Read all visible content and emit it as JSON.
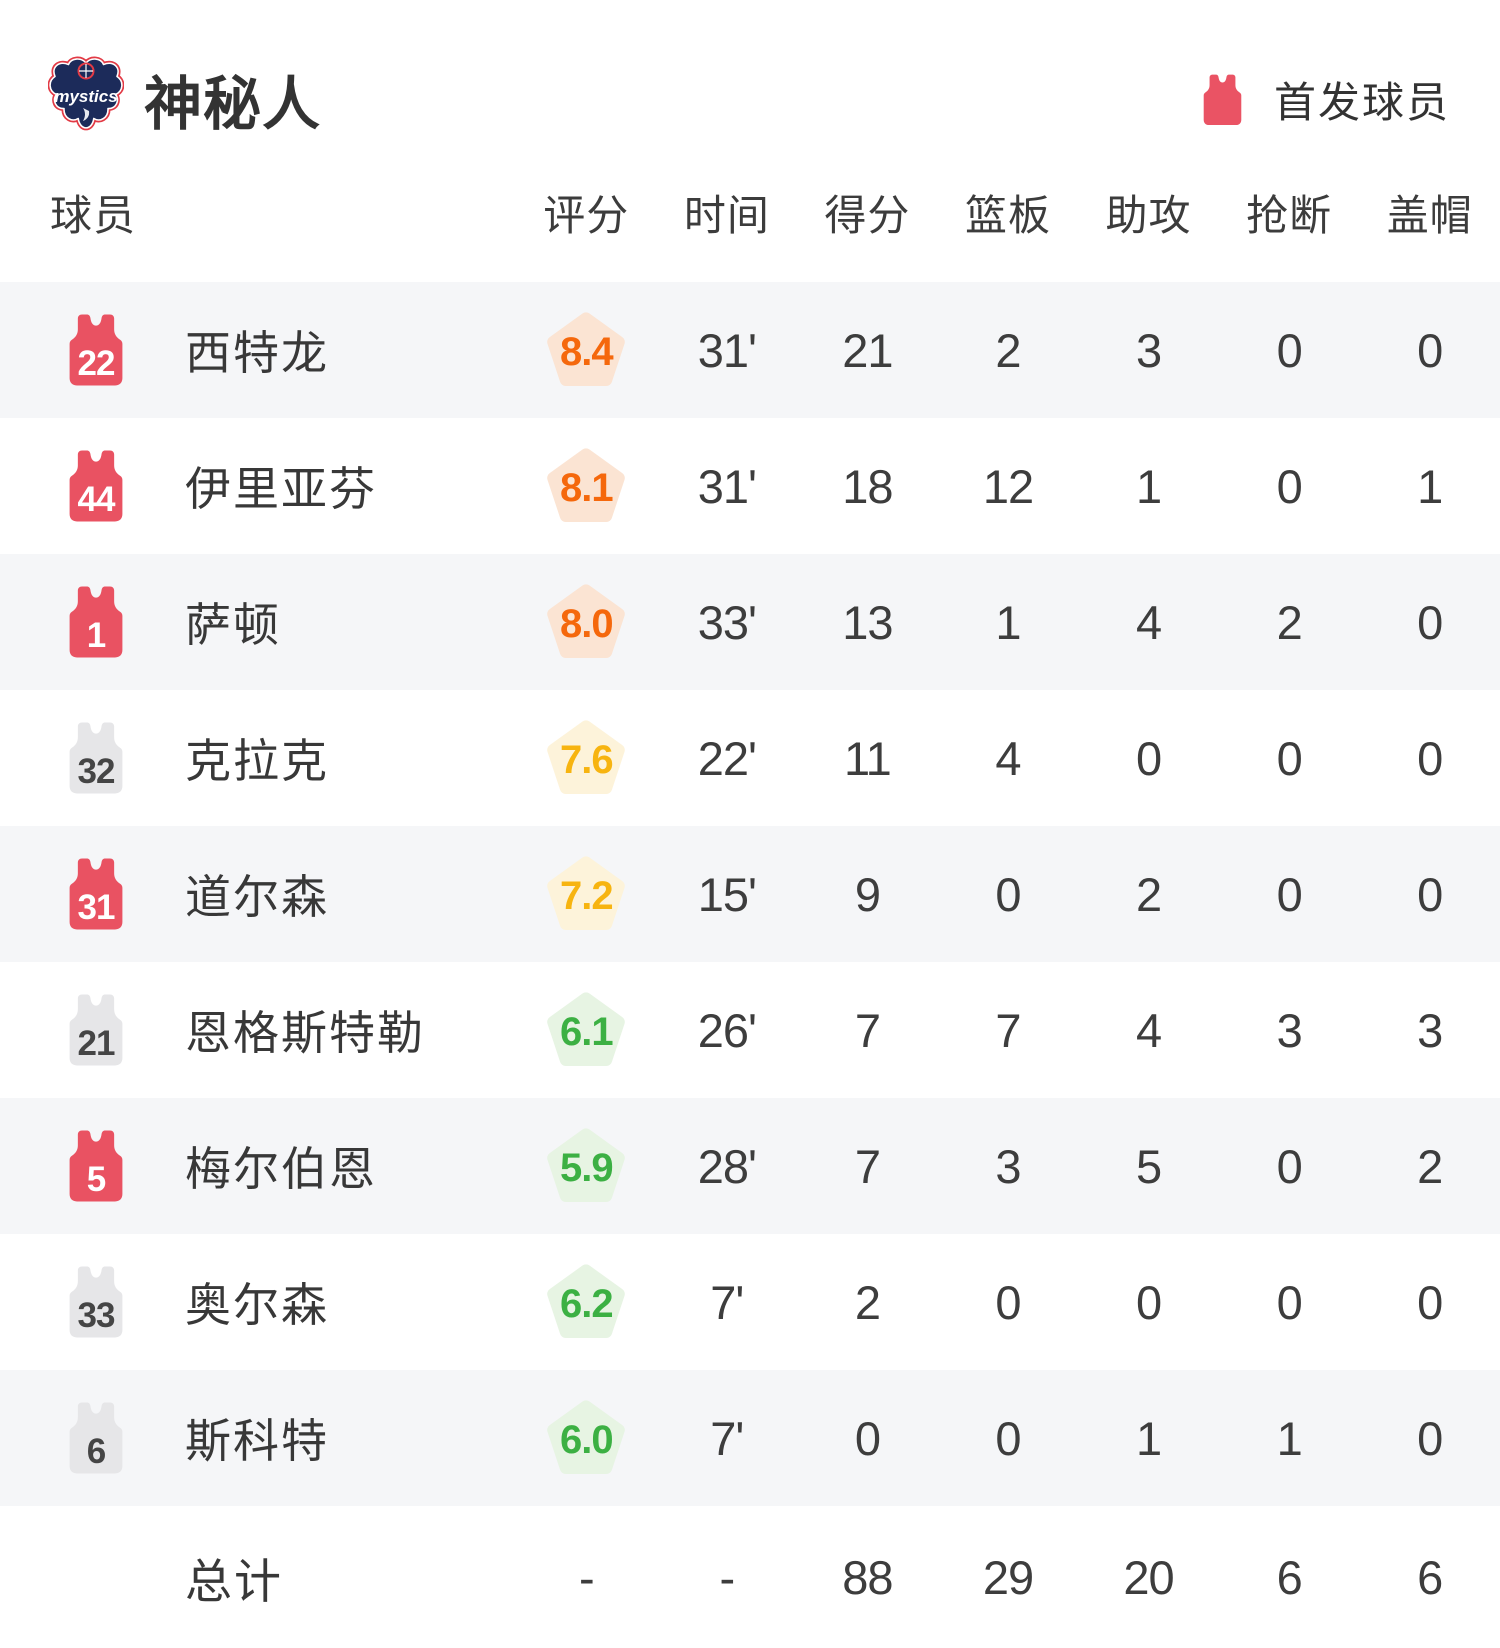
{
  "header": {
    "team_name": "神秘人",
    "logo_text": "mystics",
    "legend_label": "首发球员"
  },
  "table": {
    "columns": {
      "player": "球员",
      "rating": "评分",
      "time": "时间",
      "points": "得分",
      "rebounds": "篮板",
      "assists": "助攻",
      "steals": "抢断",
      "blocks": "盖帽"
    },
    "players": [
      {
        "number": "22",
        "starter": true,
        "name": "西特龙",
        "rating": "8.4",
        "tier": "orange",
        "time": "31'",
        "points": "21",
        "rebounds": "2",
        "assists": "3",
        "steals": "0",
        "blocks": "0"
      },
      {
        "number": "44",
        "starter": true,
        "name": "伊里亚芬",
        "rating": "8.1",
        "tier": "orange",
        "time": "31'",
        "points": "18",
        "rebounds": "12",
        "assists": "1",
        "steals": "0",
        "blocks": "1"
      },
      {
        "number": "1",
        "starter": true,
        "name": "萨顿",
        "rating": "8.0",
        "tier": "orange",
        "time": "33'",
        "points": "13",
        "rebounds": "1",
        "assists": "4",
        "steals": "2",
        "blocks": "0"
      },
      {
        "number": "32",
        "starter": false,
        "name": "克拉克",
        "rating": "7.6",
        "tier": "amber",
        "time": "22'",
        "points": "11",
        "rebounds": "4",
        "assists": "0",
        "steals": "0",
        "blocks": "0"
      },
      {
        "number": "31",
        "starter": true,
        "name": "道尔森",
        "rating": "7.2",
        "tier": "amber",
        "time": "15'",
        "points": "9",
        "rebounds": "0",
        "assists": "2",
        "steals": "0",
        "blocks": "0"
      },
      {
        "number": "21",
        "starter": false,
        "name": "恩格斯特勒",
        "rating": "6.1",
        "tier": "green",
        "time": "26'",
        "points": "7",
        "rebounds": "7",
        "assists": "4",
        "steals": "3",
        "blocks": "3"
      },
      {
        "number": "5",
        "starter": true,
        "name": "梅尔伯恩",
        "rating": "5.9",
        "tier": "green",
        "time": "28'",
        "points": "7",
        "rebounds": "3",
        "assists": "5",
        "steals": "0",
        "blocks": "2"
      },
      {
        "number": "33",
        "starter": false,
        "name": "奥尔森",
        "rating": "6.2",
        "tier": "green",
        "time": "7'",
        "points": "2",
        "rebounds": "0",
        "assists": "0",
        "steals": "0",
        "blocks": "0"
      },
      {
        "number": "6",
        "starter": false,
        "name": "斯科特",
        "rating": "6.0",
        "tier": "green",
        "time": "7'",
        "points": "0",
        "rebounds": "0",
        "assists": "1",
        "steals": "1",
        "blocks": "0"
      }
    ],
    "totals": {
      "label": "总计",
      "rating": "-",
      "time": "-",
      "points": "88",
      "rebounds": "29",
      "assists": "20",
      "steals": "6",
      "blocks": "6"
    }
  },
  "colors": {
    "starter_jersey": "#e95262",
    "bench_jersey": "#e6e6e8",
    "row_alt_background": "#f5f6f8",
    "rating_orange_text": "#f5680c",
    "rating_orange_bg": "#fbe4d3",
    "rating_amber_text": "#f7b410",
    "rating_amber_bg": "#fdf3da",
    "rating_green_text": "#3cb043",
    "rating_green_bg": "#e7f4e3",
    "text_dark": "#3d3d3d"
  }
}
